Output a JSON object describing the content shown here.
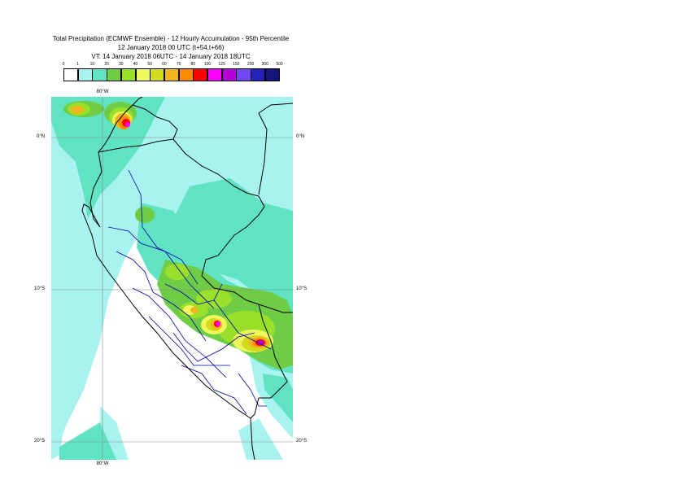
{
  "title": {
    "line1": "Total Precipitation (ECMWF Ensemble) - 12 Hourly Accumulation - 95th Percentile",
    "line2": "12 January 2018 00 UTC (t+54,t+66)",
    "line3": "VT: 14 January 2018 06UTC - 14 January 2018 18UTC"
  },
  "legend": {
    "ticks": [
      "0",
      "1",
      "10",
      "20",
      "30",
      "40",
      "50",
      "60",
      "70",
      "80",
      "100",
      "125",
      "150",
      "200",
      "300",
      "500"
    ],
    "colors": [
      "#ffffff",
      "#a8f3ef",
      "#5fe3c3",
      "#6fcc45",
      "#99e02a",
      "#eef85e",
      "#d2dc1a",
      "#f2b51e",
      "#ff8a00",
      "#ff0000",
      "#ff00ff",
      "#b300d6",
      "#7447f5",
      "#2222bb",
      "#15157a"
    ]
  },
  "axes": {
    "lon_top": "80°W",
    "lon_bottom": "80°W",
    "lat_left": [
      "0°N",
      "10°S",
      "20°S"
    ],
    "lat_right": [
      "0°N",
      "10°S",
      "20°S"
    ]
  },
  "map": {
    "ocean_color": "#ffffff",
    "field_light": "#a8f3ef",
    "field_medium": "#5fe3c3",
    "field_green": "#6fcc45",
    "field_yellowgreen": "#99e02a",
    "field_yellow": "#eef85e",
    "field_olive": "#d2dc1a",
    "field_orange": "#f2b51e",
    "field_darkorange": "#ff8a00",
    "field_red": "#ff0000",
    "field_magenta": "#ff00ff",
    "field_purple": "#b300d6",
    "coast_color": "#000000",
    "region_color": "#0000aa"
  }
}
